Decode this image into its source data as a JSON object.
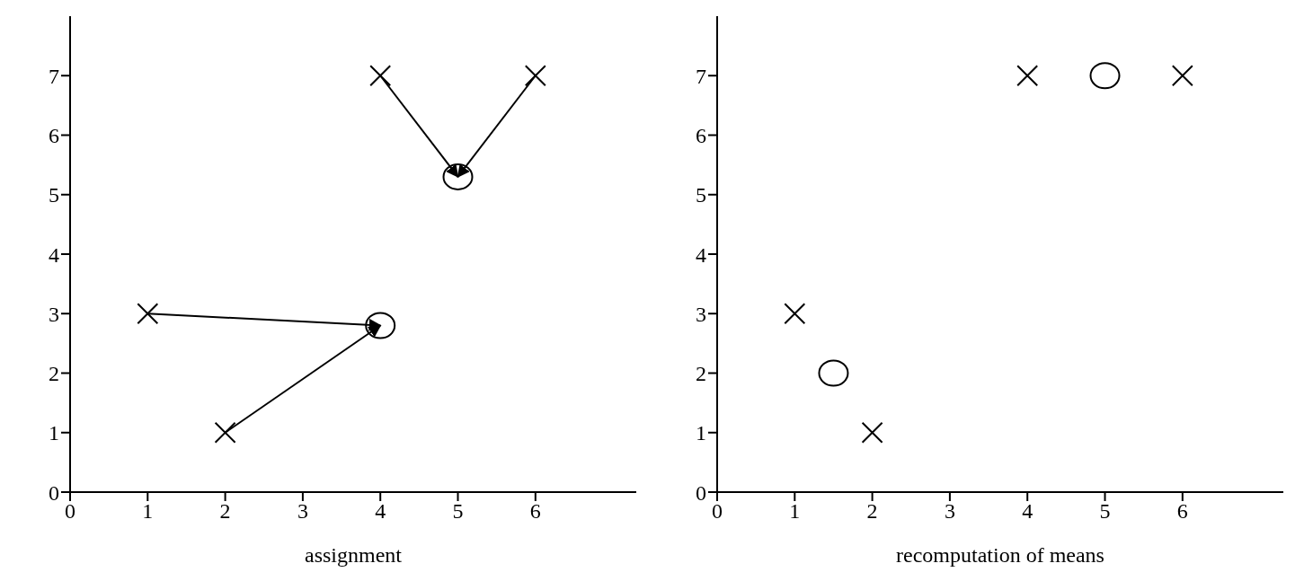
{
  "chart_data": [
    {
      "type": "scatter",
      "xlabel": "assignment",
      "xlim": [
        0,
        7.3
      ],
      "ylim": [
        0,
        8
      ],
      "xticks": [
        0,
        1,
        2,
        3,
        4,
        5,
        6
      ],
      "yticks": [
        0,
        1,
        2,
        3,
        4,
        5,
        6,
        7
      ],
      "series": [
        {
          "marker": "cross",
          "color": "#000000",
          "x": [
            1,
            2,
            4,
            6
          ],
          "values": [
            3,
            1,
            7,
            7
          ]
        },
        {
          "marker": "circle",
          "color": "#000000",
          "x": [
            4,
            5
          ],
          "values": [
            2.8,
            5.3
          ]
        },
        {
          "type": "line",
          "color": "#000000",
          "x": [
            1,
            4
          ],
          "values": [
            3,
            2.8
          ]
        },
        {
          "type": "line",
          "color": "#000000",
          "x": [
            2,
            4
          ],
          "values": [
            1,
            2.8
          ]
        },
        {
          "type": "line",
          "color": "#000000",
          "x": [
            4,
            5
          ],
          "values": [
            7,
            5.3
          ]
        },
        {
          "type": "line",
          "color": "#000000",
          "x": [
            6,
            5
          ],
          "values": [
            7,
            5.3
          ]
        }
      ]
    },
    {
      "type": "scatter",
      "xlabel": "recomputation of means",
      "xlim": [
        0,
        7.3
      ],
      "ylim": [
        0,
        8
      ],
      "xticks": [
        0,
        1,
        2,
        3,
        4,
        5,
        6
      ],
      "yticks": [
        0,
        1,
        2,
        3,
        4,
        5,
        6,
        7
      ],
      "series": [
        {
          "marker": "cross",
          "color": "#000000",
          "x": [
            1,
            2,
            4,
            6
          ],
          "values": [
            3,
            1,
            7,
            7
          ]
        },
        {
          "marker": "circle",
          "color": "#000000",
          "x": [
            1.5,
            5
          ],
          "values": [
            2,
            7
          ]
        }
      ]
    }
  ]
}
